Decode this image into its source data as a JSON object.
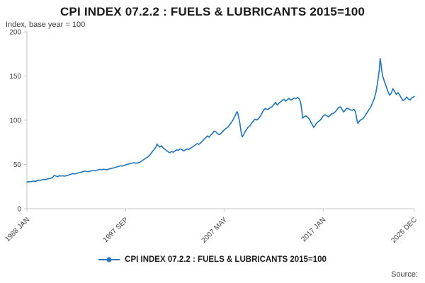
{
  "page": {
    "title": "CPI INDEX 07.2.2 : FUELS & LUBRICANTS 2015=100",
    "subtitle": "Index, base year = 100",
    "legend_label": "CPI INDEX 07.2.2 : FUELS & LUBRICANTS 2015=100",
    "source_label": "Source:"
  },
  "chart_data": {
    "type": "line",
    "title": "CPI INDEX 07.2.2 : FUELS & LUBRICANTS 2015=100",
    "subtitle": "Index, base year = 100",
    "xlabel": "",
    "ylabel": "Index, base year = 100",
    "ylim": [
      0,
      200
    ],
    "yticks": [
      0,
      50,
      100,
      150,
      200
    ],
    "xlim": [
      1988.0,
      2025.93
    ],
    "xtick_positions": [
      1988.0,
      1997.667,
      2007.333,
      2017.0,
      2025.917
    ],
    "xtick_labels": [
      "1988 JAN",
      "1997 SEP",
      "2007 MAY",
      "2017 JAN",
      "2025 DEC"
    ],
    "grid": false,
    "legend_position": "bottom",
    "line_color": "#2073bc",
    "axis_color": "#c6c6c6",
    "tick_label_color": "#414042",
    "series": [
      {
        "name": "CPI INDEX 07.2.2 : FUELS & LUBRICANTS 2015=100",
        "points": [
          [
            1988.0,
            30.2
          ],
          [
            1988.17,
            30.6
          ],
          [
            1988.33,
            30.4
          ],
          [
            1988.5,
            30.9
          ],
          [
            1988.67,
            31.2
          ],
          [
            1988.83,
            31.0
          ],
          [
            1989.0,
            31.8
          ],
          [
            1989.17,
            32.3
          ],
          [
            1989.33,
            32.1
          ],
          [
            1989.5,
            32.8
          ],
          [
            1989.67,
            33.2
          ],
          [
            1989.83,
            33.0
          ],
          [
            1990.0,
            33.6
          ],
          [
            1990.17,
            34.1
          ],
          [
            1990.33,
            34.4
          ],
          [
            1990.5,
            35.2
          ],
          [
            1990.67,
            37.6
          ],
          [
            1990.83,
            37.0
          ],
          [
            1991.0,
            36.2
          ],
          [
            1991.17,
            37.4
          ],
          [
            1991.33,
            36.9
          ],
          [
            1991.5,
            37.3
          ],
          [
            1991.67,
            36.8
          ],
          [
            1991.83,
            37.2
          ],
          [
            1992.0,
            37.8
          ],
          [
            1992.17,
            38.4
          ],
          [
            1992.33,
            39.1
          ],
          [
            1992.5,
            39.8
          ],
          [
            1992.67,
            39.3
          ],
          [
            1992.83,
            39.7
          ],
          [
            1993.0,
            40.5
          ],
          [
            1993.17,
            40.9
          ],
          [
            1993.33,
            41.4
          ],
          [
            1993.5,
            42.0
          ],
          [
            1993.67,
            42.5
          ],
          [
            1993.83,
            42.1
          ],
          [
            1994.0,
            41.9
          ],
          [
            1994.17,
            42.4
          ],
          [
            1994.33,
            42.8
          ],
          [
            1994.5,
            43.2
          ],
          [
            1994.67,
            42.9
          ],
          [
            1994.83,
            43.5
          ],
          [
            1995.0,
            44.0
          ],
          [
            1995.17,
            44.5
          ],
          [
            1995.33,
            44.2
          ],
          [
            1995.5,
            44.7
          ],
          [
            1995.67,
            44.3
          ],
          [
            1995.83,
            44.0
          ],
          [
            1996.0,
            44.8
          ],
          [
            1996.17,
            45.3
          ],
          [
            1996.33,
            45.8
          ],
          [
            1996.5,
            46.2
          ],
          [
            1996.67,
            46.8
          ],
          [
            1996.83,
            47.3
          ],
          [
            1997.0,
            47.9
          ],
          [
            1997.17,
            48.5
          ],
          [
            1997.33,
            48.2
          ],
          [
            1997.5,
            49.0
          ],
          [
            1997.67,
            49.6
          ],
          [
            1997.83,
            50.1
          ],
          [
            1998.0,
            50.7
          ],
          [
            1998.17,
            51.2
          ],
          [
            1998.33,
            51.7
          ],
          [
            1998.5,
            52.0
          ],
          [
            1998.67,
            51.5
          ],
          [
            1998.83,
            51.8
          ],
          [
            1999.0,
            52.3
          ],
          [
            1999.17,
            53.4
          ],
          [
            1999.33,
            54.7
          ],
          [
            1999.5,
            55.9
          ],
          [
            1999.67,
            57.3
          ],
          [
            1999.83,
            58.5
          ],
          [
            2000.0,
            60.4
          ],
          [
            2000.17,
            62.8
          ],
          [
            2000.33,
            65.3
          ],
          [
            2000.5,
            67.6
          ],
          [
            2000.67,
            70.4
          ],
          [
            2000.75,
            73.2
          ],
          [
            2000.83,
            71.8
          ],
          [
            2001.0,
            69.8
          ],
          [
            2001.17,
            71.2
          ],
          [
            2001.33,
            68.8
          ],
          [
            2001.5,
            67.3
          ],
          [
            2001.67,
            65.8
          ],
          [
            2001.83,
            64.3
          ],
          [
            2002.0,
            63.4
          ],
          [
            2002.17,
            64.7
          ],
          [
            2002.33,
            63.9
          ],
          [
            2002.5,
            65.4
          ],
          [
            2002.67,
            66.6
          ],
          [
            2002.83,
            65.9
          ],
          [
            2003.0,
            67.8
          ],
          [
            2003.17,
            66.8
          ],
          [
            2003.33,
            65.4
          ],
          [
            2003.5,
            66.3
          ],
          [
            2003.67,
            67.6
          ],
          [
            2003.83,
            67.0
          ],
          [
            2004.0,
            68.3
          ],
          [
            2004.17,
            69.6
          ],
          [
            2004.33,
            70.8
          ],
          [
            2004.5,
            72.3
          ],
          [
            2004.67,
            73.6
          ],
          [
            2004.83,
            72.8
          ],
          [
            2005.0,
            74.3
          ],
          [
            2005.17,
            76.3
          ],
          [
            2005.33,
            78.3
          ],
          [
            2005.5,
            80.3
          ],
          [
            2005.67,
            82.3
          ],
          [
            2005.83,
            80.8
          ],
          [
            2006.0,
            83.3
          ],
          [
            2006.17,
            85.3
          ],
          [
            2006.33,
            87.8
          ],
          [
            2006.5,
            86.8
          ],
          [
            2006.67,
            84.8
          ],
          [
            2006.83,
            83.8
          ],
          [
            2007.0,
            85.3
          ],
          [
            2007.17,
            87.3
          ],
          [
            2007.33,
            89.3
          ],
          [
            2007.5,
            90.8
          ],
          [
            2007.67,
            92.3
          ],
          [
            2007.83,
            94.8
          ],
          [
            2008.0,
            97.3
          ],
          [
            2008.17,
            100.3
          ],
          [
            2008.33,
            103.8
          ],
          [
            2008.5,
            108.3
          ],
          [
            2008.58,
            109.8
          ],
          [
            2008.67,
            106.8
          ],
          [
            2008.83,
            97.8
          ],
          [
            2009.0,
            84.8
          ],
          [
            2009.08,
            81.3
          ],
          [
            2009.17,
            82.8
          ],
          [
            2009.33,
            86.3
          ],
          [
            2009.5,
            89.8
          ],
          [
            2009.67,
            92.3
          ],
          [
            2009.83,
            93.8
          ],
          [
            2010.0,
            96.8
          ],
          [
            2010.17,
            99.3
          ],
          [
            2010.33,
            101.3
          ],
          [
            2010.5,
            100.3
          ],
          [
            2010.67,
            101.8
          ],
          [
            2010.83,
            104.3
          ],
          [
            2011.0,
            107.8
          ],
          [
            2011.17,
            111.3
          ],
          [
            2011.33,
            113.3
          ],
          [
            2011.5,
            112.3
          ],
          [
            2011.67,
            112.8
          ],
          [
            2011.83,
            114.3
          ],
          [
            2012.0,
            115.3
          ],
          [
            2012.17,
            117.8
          ],
          [
            2012.33,
            120.3
          ],
          [
            2012.5,
            117.3
          ],
          [
            2012.67,
            119.3
          ],
          [
            2012.83,
            120.8
          ],
          [
            2013.0,
            122.3
          ],
          [
            2013.17,
            123.8
          ],
          [
            2013.33,
            121.8
          ],
          [
            2013.5,
            123.3
          ],
          [
            2013.67,
            124.8
          ],
          [
            2013.83,
            122.8
          ],
          [
            2014.0,
            123.8
          ],
          [
            2014.17,
            125.3
          ],
          [
            2014.33,
            124.3
          ],
          [
            2014.5,
            125.8
          ],
          [
            2014.67,
            124.3
          ],
          [
            2014.83,
            118.3
          ],
          [
            2015.0,
            102.3
          ],
          [
            2015.17,
            104.3
          ],
          [
            2015.33,
            105.0
          ],
          [
            2015.5,
            103.3
          ],
          [
            2015.67,
            100.8
          ],
          [
            2015.83,
            97.3
          ],
          [
            2016.0,
            93.8
          ],
          [
            2016.08,
            92.0
          ],
          [
            2016.17,
            93.3
          ],
          [
            2016.33,
            96.3
          ],
          [
            2016.5,
            98.3
          ],
          [
            2016.67,
            99.8
          ],
          [
            2016.83,
            101.8
          ],
          [
            2017.0,
            104.8
          ],
          [
            2017.17,
            106.3
          ],
          [
            2017.33,
            105.3
          ],
          [
            2017.5,
            103.8
          ],
          [
            2017.67,
            105.3
          ],
          [
            2017.83,
            107.3
          ],
          [
            2018.0,
            107.8
          ],
          [
            2018.17,
            109.3
          ],
          [
            2018.33,
            111.8
          ],
          [
            2018.5,
            114.3
          ],
          [
            2018.67,
            115.3
          ],
          [
            2018.83,
            112.8
          ],
          [
            2019.0,
            109.3
          ],
          [
            2019.17,
            111.8
          ],
          [
            2019.33,
            113.8
          ],
          [
            2019.5,
            112.8
          ],
          [
            2019.67,
            111.8
          ],
          [
            2019.83,
            111.3
          ],
          [
            2020.0,
            112.3
          ],
          [
            2020.17,
            109.8
          ],
          [
            2020.33,
            98.8
          ],
          [
            2020.42,
            96.3
          ],
          [
            2020.5,
            98.3
          ],
          [
            2020.67,
            100.3
          ],
          [
            2020.83,
            101.3
          ],
          [
            2021.0,
            103.3
          ],
          [
            2021.17,
            106.3
          ],
          [
            2021.33,
            109.3
          ],
          [
            2021.5,
            112.3
          ],
          [
            2021.67,
            115.3
          ],
          [
            2021.83,
            119.8
          ],
          [
            2022.0,
            124.3
          ],
          [
            2022.17,
            131.8
          ],
          [
            2022.33,
            142.8
          ],
          [
            2022.5,
            156.8
          ],
          [
            2022.58,
            169.8
          ],
          [
            2022.67,
            162.8
          ],
          [
            2022.75,
            155.8
          ],
          [
            2022.83,
            149.8
          ],
          [
            2023.0,
            143.8
          ],
          [
            2023.17,
            138.3
          ],
          [
            2023.33,
            132.8
          ],
          [
            2023.5,
            128.3
          ],
          [
            2023.67,
            130.8
          ],
          [
            2023.83,
            135.8
          ],
          [
            2024.0,
            132.3
          ],
          [
            2024.17,
            129.3
          ],
          [
            2024.33,
            131.3
          ],
          [
            2024.5,
            128.3
          ],
          [
            2024.67,
            124.8
          ],
          [
            2024.83,
            122.3
          ],
          [
            2025.0,
            123.8
          ],
          [
            2025.17,
            126.3
          ],
          [
            2025.33,
            124.3
          ],
          [
            2025.5,
            122.8
          ],
          [
            2025.67,
            125.3
          ],
          [
            2025.83,
            126.3
          ],
          [
            2025.92,
            127.0
          ]
        ]
      }
    ]
  }
}
